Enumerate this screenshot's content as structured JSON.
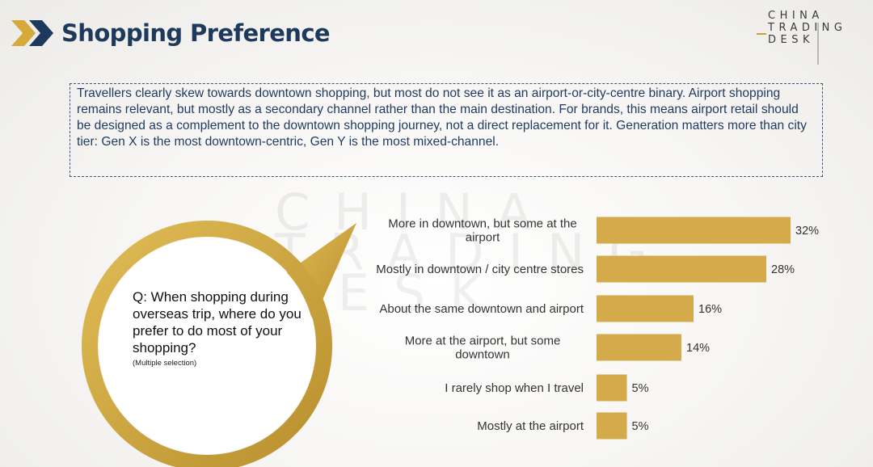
{
  "header": {
    "title": "Shopping Preference"
  },
  "logo": {
    "rows": [
      "CHINA",
      "TRADING",
      "DESK"
    ]
  },
  "summary": {
    "text": "Travellers clearly skew towards downtown shopping, but most do not see it as an airport-or-city-centre binary. Airport shopping remains relevant, but mostly as a secondary channel rather than the main destination. For brands, this means airport retail should be designed as a complement to the downtown shopping journey, not a direct replacement for it. Generation matters more than city tier: Gen X is the most downtown-centric, Gen Y is the most mixed-channel."
  },
  "question": {
    "text": "Q: When shopping during overseas trip, where do you prefer to do most of your shopping?",
    "note": "(Multiple selection)"
  },
  "colors": {
    "accent": "#d4aa4a",
    "ring": "#c9a23a",
    "title": "#1d3a5c",
    "chevron": "#d6aa3a"
  },
  "chart_data": {
    "type": "bar",
    "orientation": "horizontal",
    "categories": [
      "More in downtown, but some at the airport",
      "Mostly in downtown / city centre stores",
      "About the same downtown and airport",
      "More at the airport, but some downtown",
      "I rarely shop when I travel",
      "Mostly at the airport"
    ],
    "category_lines": [
      [
        "More in downtown, but some at the",
        "airport"
      ],
      [
        "Mostly in downtown / city centre stores"
      ],
      [
        "About the same downtown and airport"
      ],
      [
        "More at the airport, but some",
        "downtown"
      ],
      [
        "I rarely shop when I travel"
      ],
      [
        "Mostly at the airport"
      ]
    ],
    "values": [
      32,
      28,
      16,
      14,
      5,
      5
    ],
    "value_labels": [
      "32%",
      "28%",
      "16%",
      "14%",
      "5%",
      "5%"
    ],
    "unit": "%",
    "xlim": [
      0,
      32
    ],
    "grid": false,
    "legend": "none"
  }
}
